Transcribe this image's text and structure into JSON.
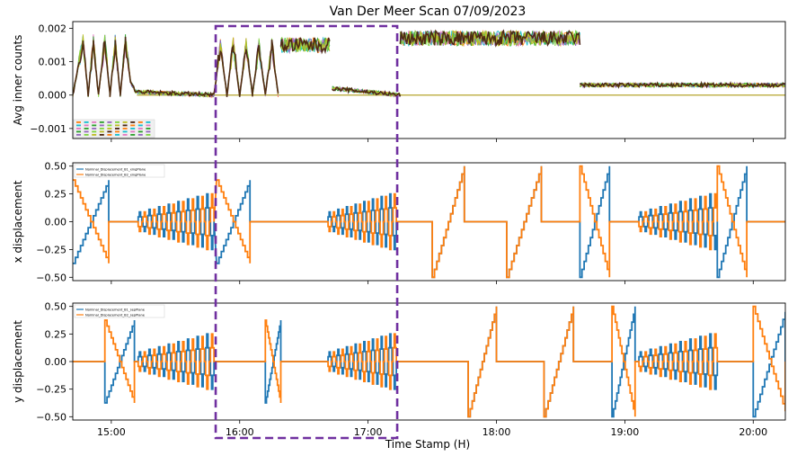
{
  "title": "Van Der Meer Scan 07/09/2023",
  "xlabel": "Time Stamp (H)",
  "colors": {
    "blue": "#1f77b4",
    "orange": "#ff7f0e",
    "box": "#7030a0",
    "brown": "#4a2410",
    "axis": "#000000"
  },
  "chart_data": [
    {
      "type": "line",
      "panel": "top",
      "ylabel": "Avg inner counts",
      "ylim": [
        -0.0013,
        0.0022
      ],
      "yticks": [
        -0.001,
        0.0,
        0.001,
        0.002
      ],
      "ytick_labels": [
        "−0.001",
        "0.000",
        "0.001",
        "0.002"
      ],
      "xlim": [
        14.7,
        20.25
      ],
      "series_note": "many overlapping channels",
      "segments": [
        {
          "x": [
            14.7,
            14.78,
            14.82,
            14.86,
            14.9,
            14.95,
            14.99,
            15.03,
            15.07,
            15.11,
            15.15,
            15.19
          ],
          "y": [
            0.0,
            0.0016,
            0.0,
            0.0016,
            0.0,
            0.0016,
            0.0,
            0.0016,
            0.0,
            0.0016,
            0.0004,
            0.0001
          ]
        },
        {
          "x": [
            15.19,
            15.8
          ],
          "y": [
            0.0001,
            0.0
          ]
        },
        {
          "x": [
            15.8,
            15.85,
            15.9,
            15.95,
            16.0,
            16.05,
            16.1,
            16.15,
            16.2,
            16.25,
            16.3
          ],
          "y": [
            0.0,
            0.0015,
            0.0,
            0.0015,
            0.0,
            0.0015,
            0.0,
            0.0015,
            0.0,
            0.0015,
            0.0
          ]
        },
        {
          "x": [
            16.32,
            16.7
          ],
          "y": [
            0.0015,
            0.0015
          ]
        },
        {
          "x": [
            16.72,
            17.25
          ],
          "y": [
            0.0002,
            0.0
          ]
        },
        {
          "x": [
            17.25,
            18.65
          ],
          "y": [
            0.0017,
            0.0017
          ]
        },
        {
          "x": [
            18.65,
            20.25
          ],
          "y": [
            0.0003,
            0.0003
          ]
        }
      ]
    },
    {
      "type": "line",
      "panel": "middle",
      "ylabel": "x displacement",
      "ylim": [
        -0.53,
        0.53
      ],
      "yticks": [
        -0.5,
        -0.25,
        0.0,
        0.25,
        0.5
      ],
      "ytick_labels": [
        "−0.50",
        "−0.25",
        "0.00",
        "0.25",
        "0.50"
      ],
      "xlim": [
        14.7,
        20.25
      ],
      "legend": {
        "placement": "upper-left",
        "entries": [
          "Nominal_Displacement_B1_xingPlane",
          "Nominal_Displacement_B2_xingPlane"
        ]
      },
      "series": [
        {
          "name": "Nominal_Displacement_B1_xingPlane",
          "color": "#1f77b4",
          "scans": [
            {
              "kind": "ramp",
              "x0": 14.7,
              "x1": 14.98,
              "from": -0.375,
              "to": 0.375
            },
            {
              "kind": "flat",
              "x0": 14.98,
              "x1": 15.2
            },
            {
              "kind": "osc",
              "x0": 15.2,
              "x1": 15.8,
              "amp": 0.25
            },
            {
              "kind": "ramp",
              "x0": 15.82,
              "x1": 16.08,
              "from": -0.375,
              "to": 0.375
            },
            {
              "kind": "flat",
              "x0": 16.08,
              "x1": 16.68
            },
            {
              "kind": "osc",
              "x0": 16.68,
              "x1": 17.22,
              "amp": 0.25
            },
            {
              "kind": "flat",
              "x0": 17.22,
              "x1": 17.5
            },
            {
              "kind": "ramp",
              "x0": 17.5,
              "x1": 17.75,
              "from": -0.5,
              "to": 0.5
            },
            {
              "kind": "flat",
              "x0": 17.75,
              "x1": 18.08
            },
            {
              "kind": "ramp",
              "x0": 18.08,
              "x1": 18.35,
              "from": -0.5,
              "to": 0.5
            },
            {
              "kind": "flat",
              "x0": 18.35,
              "x1": 18.65
            },
            {
              "kind": "ramp",
              "x0": 18.65,
              "x1": 18.88,
              "from": -0.5,
              "to": 0.5
            },
            {
              "kind": "flat",
              "x0": 18.88,
              "x1": 19.1
            },
            {
              "kind": "osc",
              "x0": 19.1,
              "x1": 19.72,
              "amp": 0.25
            },
            {
              "kind": "ramp",
              "x0": 19.72,
              "x1": 19.95,
              "from": -0.5,
              "to": 0.5
            },
            {
              "kind": "flat",
              "x0": 19.95,
              "x1": 20.25
            }
          ]
        },
        {
          "name": "Nominal_Displacement_B2_xingPlane",
          "color": "#ff7f0e",
          "scans": [
            {
              "kind": "ramp",
              "x0": 14.7,
              "x1": 14.98,
              "from": 0.375,
              "to": -0.375
            },
            {
              "kind": "flat",
              "x0": 14.98,
              "x1": 15.2
            },
            {
              "kind": "osc",
              "x0": 15.2,
              "x1": 15.8,
              "amp": -0.25
            },
            {
              "kind": "ramp",
              "x0": 15.82,
              "x1": 16.08,
              "from": 0.375,
              "to": -0.375
            },
            {
              "kind": "flat",
              "x0": 16.08,
              "x1": 16.68
            },
            {
              "kind": "osc",
              "x0": 16.68,
              "x1": 17.22,
              "amp": -0.25
            },
            {
              "kind": "flat",
              "x0": 17.22,
              "x1": 17.5
            },
            {
              "kind": "ramp",
              "x0": 17.5,
              "x1": 17.75,
              "from": -0.5,
              "to": 0.5
            },
            {
              "kind": "flat",
              "x0": 17.75,
              "x1": 18.08
            },
            {
              "kind": "ramp",
              "x0": 18.08,
              "x1": 18.35,
              "from": -0.5,
              "to": 0.5
            },
            {
              "kind": "flat",
              "x0": 18.35,
              "x1": 18.65
            },
            {
              "kind": "ramp",
              "x0": 18.65,
              "x1": 18.88,
              "from": 0.5,
              "to": -0.5
            },
            {
              "kind": "flat",
              "x0": 18.88,
              "x1": 19.1
            },
            {
              "kind": "osc",
              "x0": 19.1,
              "x1": 19.72,
              "amp": -0.25
            },
            {
              "kind": "ramp",
              "x0": 19.72,
              "x1": 19.95,
              "from": 0.5,
              "to": -0.5
            },
            {
              "kind": "flat",
              "x0": 19.95,
              "x1": 20.25
            }
          ]
        }
      ]
    },
    {
      "type": "line",
      "panel": "bottom",
      "ylabel": "y displacement",
      "ylim": [
        -0.53,
        0.53
      ],
      "yticks": [
        -0.5,
        -0.25,
        0.0,
        0.25,
        0.5
      ],
      "ytick_labels": [
        "−0.50",
        "−0.25",
        "0.00",
        "0.25",
        "0.50"
      ],
      "xlim": [
        14.7,
        20.25
      ],
      "xticks": [
        15,
        16,
        17,
        18,
        19,
        20
      ],
      "xtick_labels": [
        "15:00",
        "16:00",
        "17:00",
        "18:00",
        "19:00",
        "20:00"
      ],
      "legend": {
        "placement": "upper-left",
        "entries": [
          "Nominal_Displacement_B1_sepPlane",
          "Nominal_Displacement_B2_sepPlane"
        ]
      },
      "series": [
        {
          "name": "Nominal_Displacement_B1_sepPlane",
          "color": "#1f77b4",
          "scans": [
            {
              "kind": "flat",
              "x0": 14.7,
              "x1": 14.95
            },
            {
              "kind": "ramp",
              "x0": 14.95,
              "x1": 15.18,
              "from": -0.375,
              "to": 0.375
            },
            {
              "kind": "osc",
              "x0": 15.2,
              "x1": 15.8,
              "amp": 0.25
            },
            {
              "kind": "flat",
              "x0": 15.8,
              "x1": 16.2
            },
            {
              "kind": "ramp",
              "x0": 16.2,
              "x1": 16.32,
              "from": -0.375,
              "to": 0.375
            },
            {
              "kind": "flat",
              "x0": 16.32,
              "x1": 16.68
            },
            {
              "kind": "osc",
              "x0": 16.68,
              "x1": 17.22,
              "amp": 0.25
            },
            {
              "kind": "flat",
              "x0": 17.22,
              "x1": 17.78
            },
            {
              "kind": "ramp",
              "x0": 17.78,
              "x1": 18.0,
              "from": -0.5,
              "to": 0.5
            },
            {
              "kind": "flat",
              "x0": 18.0,
              "x1": 18.37
            },
            {
              "kind": "ramp",
              "x0": 18.37,
              "x1": 18.6,
              "from": -0.5,
              "to": 0.5
            },
            {
              "kind": "flat",
              "x0": 18.6,
              "x1": 18.9
            },
            {
              "kind": "ramp",
              "x0": 18.9,
              "x1": 19.08,
              "from": -0.5,
              "to": 0.5
            },
            {
              "kind": "osc",
              "x0": 19.1,
              "x1": 19.72,
              "amp": 0.25
            },
            {
              "kind": "flat",
              "x0": 19.72,
              "x1": 20.0
            },
            {
              "kind": "ramp",
              "x0": 20.0,
              "x1": 20.25,
              "from": -0.5,
              "to": 0.45
            }
          ]
        },
        {
          "name": "Nominal_Displacement_B2_sepPlane",
          "color": "#ff7f0e",
          "scans": [
            {
              "kind": "flat",
              "x0": 14.7,
              "x1": 14.95
            },
            {
              "kind": "ramp",
              "x0": 14.95,
              "x1": 15.18,
              "from": 0.375,
              "to": -0.375
            },
            {
              "kind": "osc",
              "x0": 15.2,
              "x1": 15.8,
              "amp": -0.25
            },
            {
              "kind": "flat",
              "x0": 15.8,
              "x1": 16.2
            },
            {
              "kind": "ramp",
              "x0": 16.2,
              "x1": 16.32,
              "from": 0.375,
              "to": -0.375
            },
            {
              "kind": "flat",
              "x0": 16.32,
              "x1": 16.68
            },
            {
              "kind": "osc",
              "x0": 16.68,
              "x1": 17.22,
              "amp": -0.25
            },
            {
              "kind": "flat",
              "x0": 17.22,
              "x1": 17.78
            },
            {
              "kind": "ramp",
              "x0": 17.78,
              "x1": 18.0,
              "from": -0.5,
              "to": 0.5
            },
            {
              "kind": "flat",
              "x0": 18.0,
              "x1": 18.37
            },
            {
              "kind": "ramp",
              "x0": 18.37,
              "x1": 18.6,
              "from": -0.5,
              "to": 0.5
            },
            {
              "kind": "flat",
              "x0": 18.6,
              "x1": 18.9
            },
            {
              "kind": "ramp",
              "x0": 18.9,
              "x1": 19.08,
              "from": 0.5,
              "to": -0.5
            },
            {
              "kind": "osc",
              "x0": 19.1,
              "x1": 19.72,
              "amp": -0.25
            },
            {
              "kind": "flat",
              "x0": 19.72,
              "x1": 20.0
            },
            {
              "kind": "ramp",
              "x0": 20.0,
              "x1": 20.25,
              "from": 0.5,
              "to": -0.45
            }
          ]
        }
      ]
    }
  ],
  "highlight_box": {
    "x0": 15.82,
    "x1": 17.22,
    "style": "dashed"
  }
}
